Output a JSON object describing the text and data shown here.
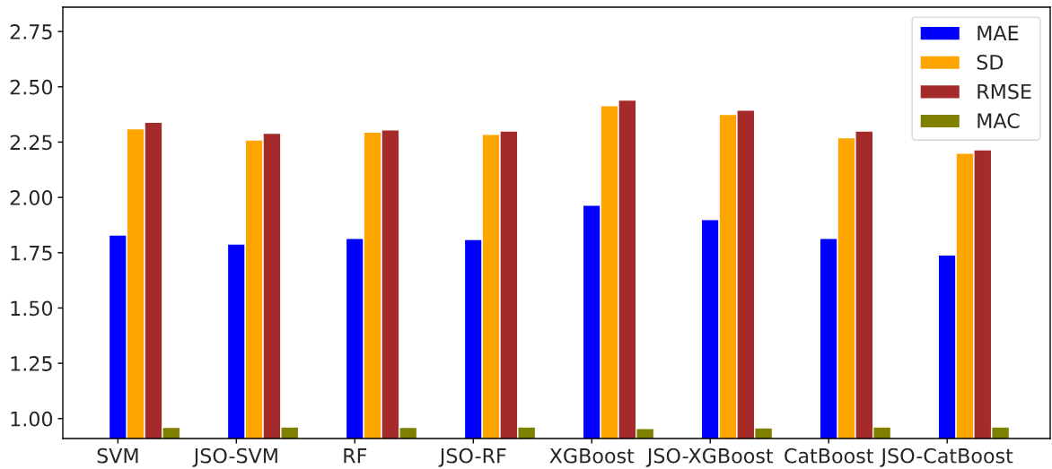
{
  "chart_data": {
    "type": "bar",
    "categories": [
      "SVM",
      "JSO-SVM",
      "RF",
      "JSO-RF",
      "XGBoost",
      "JSO-XGBoost",
      "CatBoost",
      "JSO-CatBoost"
    ],
    "series": [
      {
        "name": "MAE",
        "color": "#0000ff",
        "values": [
          1.83,
          1.79,
          1.815,
          1.81,
          1.965,
          1.9,
          1.815,
          1.74
        ]
      },
      {
        "name": "SD",
        "color": "#ffa500",
        "values": [
          2.31,
          2.26,
          2.295,
          2.285,
          2.415,
          2.375,
          2.27,
          2.2
        ]
      },
      {
        "name": "RMSE",
        "color": "#a52a2a",
        "values": [
          2.34,
          2.29,
          2.305,
          2.3,
          2.44,
          2.395,
          2.3,
          2.215
        ]
      },
      {
        "name": "MAC",
        "color": "#808000",
        "values": [
          0.96,
          0.962,
          0.96,
          0.962,
          0.955,
          0.958,
          0.962,
          0.962
        ]
      }
    ],
    "ylim": [
      0.91,
      2.86
    ],
    "yticks": [
      {
        "value": 1.0,
        "label": "1.00"
      },
      {
        "value": 1.25,
        "label": "1.25"
      },
      {
        "value": 1.5,
        "label": "1.50"
      },
      {
        "value": 1.75,
        "label": "1.75"
      },
      {
        "value": 2.0,
        "label": "2.00"
      },
      {
        "value": 2.25,
        "label": "2.25"
      },
      {
        "value": 2.5,
        "label": "2.50"
      },
      {
        "value": 2.75,
        "label": "2.75"
      }
    ],
    "grid": false,
    "legend": "top right"
  }
}
